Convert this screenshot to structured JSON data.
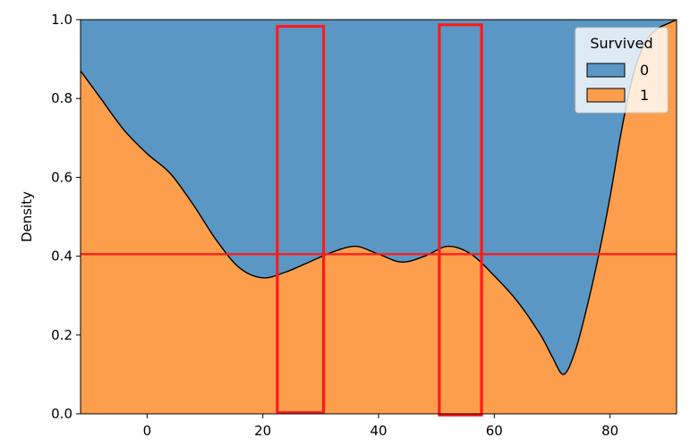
{
  "chart_data": {
    "type": "area",
    "stacked": "fill",
    "title": "",
    "xlabel": "",
    "ylabel": "Density",
    "xlim": [
      -11.5,
      91.5
    ],
    "ylim": [
      0,
      1.0
    ],
    "xticks": [
      0,
      20,
      40,
      60,
      80
    ],
    "yticks": [
      0.0,
      0.2,
      0.4,
      0.6,
      0.8,
      1.0
    ],
    "ytick_labels": [
      "0.0",
      "0.2",
      "0.4",
      "0.6",
      "0.8",
      "1.0"
    ],
    "grid": false,
    "legend": {
      "title": "Survived",
      "placement": "top-right",
      "entries": [
        {
          "label": "0",
          "color": "#5b97c4"
        },
        {
          "label": "1",
          "color": "#fd9e4c"
        }
      ]
    },
    "series_colors": {
      "0": "#5b97c4",
      "1": "#fd9e4c"
    },
    "boundary": {
      "x": [
        -11.5,
        -8,
        -4,
        0,
        4,
        8,
        12,
        16,
        20,
        24,
        28,
        32,
        36,
        40,
        44,
        48,
        52,
        56,
        60,
        64,
        68,
        70,
        72,
        74,
        76,
        78,
        80,
        82,
        84,
        86,
        88,
        90,
        91.5
      ],
      "y": [
        0.87,
        0.8,
        0.72,
        0.66,
        0.61,
        0.53,
        0.44,
        0.37,
        0.345,
        0.36,
        0.385,
        0.41,
        0.425,
        0.405,
        0.385,
        0.4,
        0.425,
        0.405,
        0.35,
        0.285,
        0.2,
        0.145,
        0.1,
        0.16,
        0.27,
        0.4,
        0.55,
        0.72,
        0.86,
        0.94,
        0.975,
        0.99,
        1.0
      ]
    },
    "annotations": {
      "hline_y": 0.405,
      "rects": [
        {
          "x0": 22.5,
          "x1": 30.5,
          "y0": 0.003,
          "y1": 0.983
        },
        {
          "x0": 50.5,
          "x1": 57.8,
          "y0": -0.003,
          "y1": 0.987
        }
      ],
      "color": "#ff1a1a"
    }
  }
}
